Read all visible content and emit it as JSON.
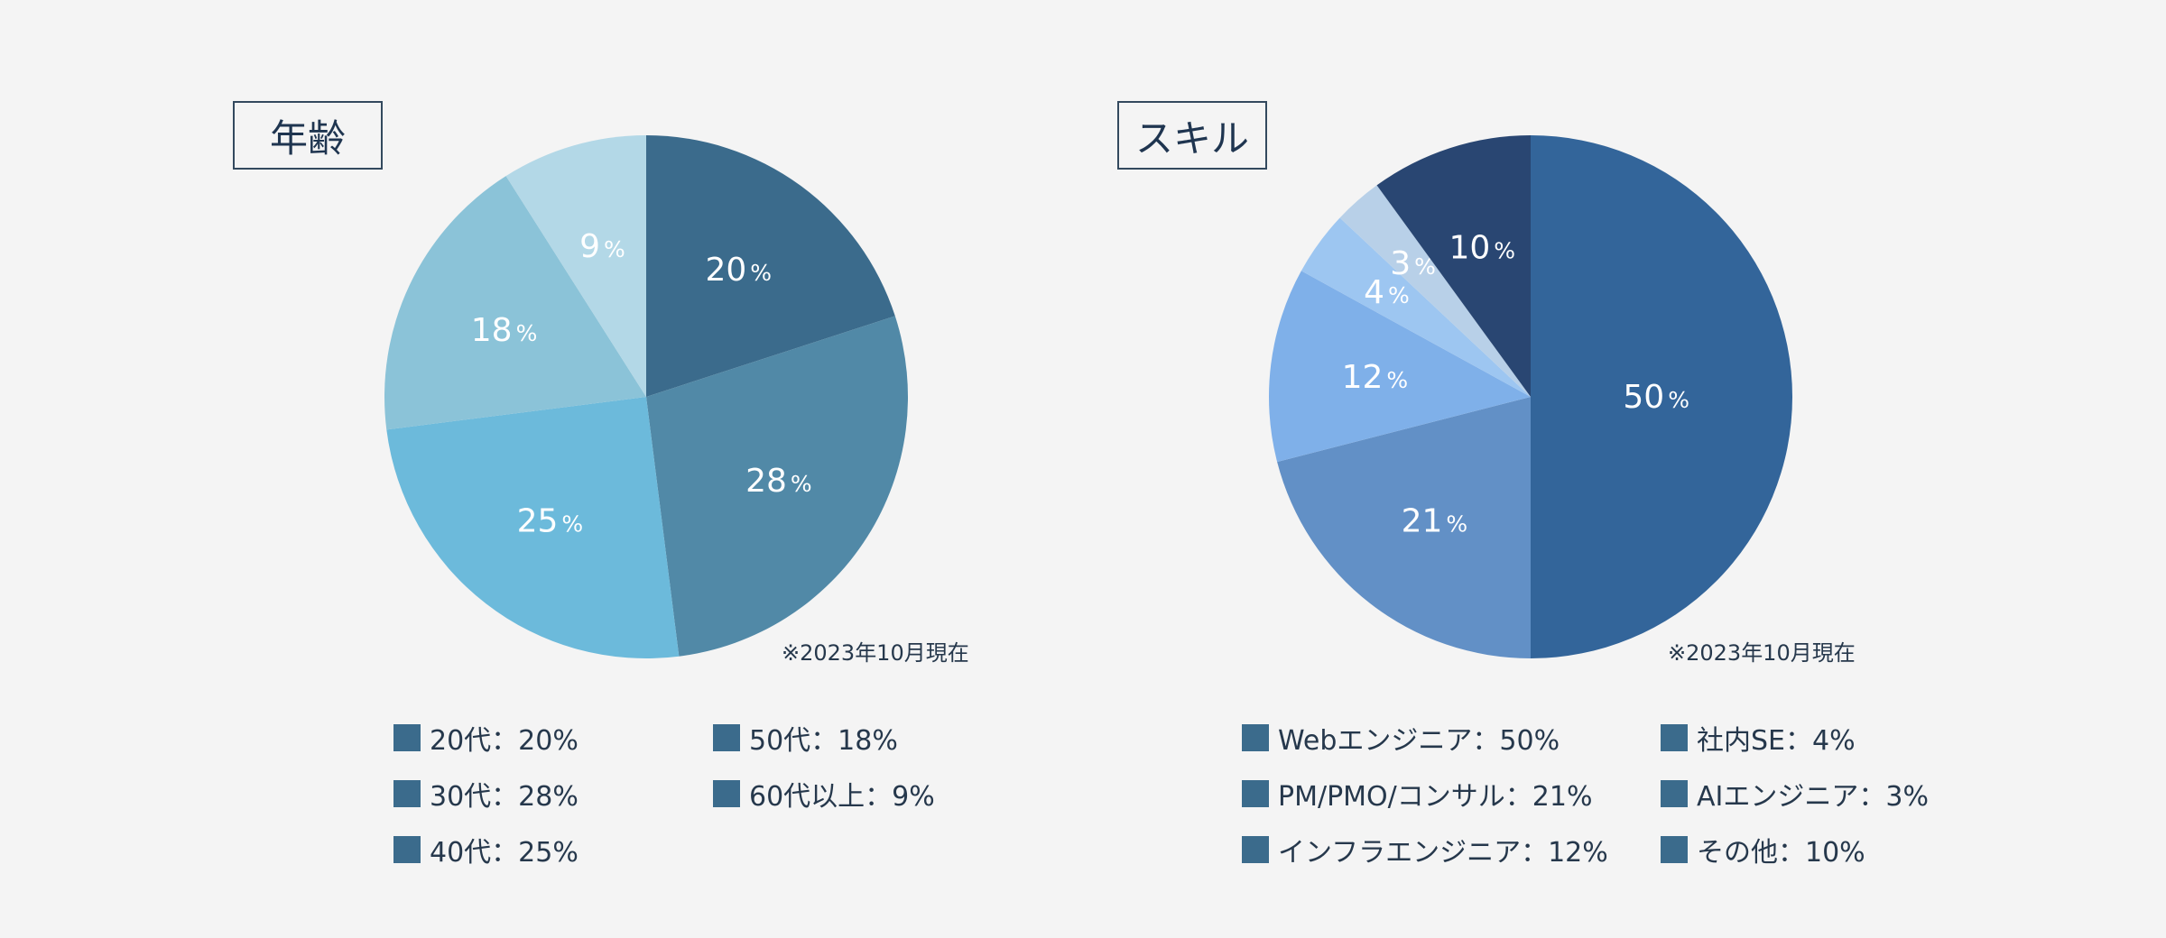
{
  "chart_data": [
    {
      "type": "pie",
      "title": "年齢",
      "note": "※2023年10月現在",
      "slices": [
        {
          "label": "20代",
          "value": 20,
          "color": "#3b6b8c",
          "legend": "20代：20%"
        },
        {
          "label": "30代",
          "value": 28,
          "color": "#5189a7",
          "legend": "30代：28%"
        },
        {
          "label": "40代",
          "value": 25,
          "color": "#6cbadb",
          "legend": "40代：25%"
        },
        {
          "label": "50代",
          "value": 18,
          "color": "#8bc3d8",
          "legend": "50代：18%"
        },
        {
          "label": "60代以上",
          "value": 9,
          "color": "#b3d8e7",
          "legend": "60代以上：9%"
        }
      ],
      "data_labels": [
        "20",
        "28",
        "25",
        "18",
        "9"
      ],
      "legend_marker_color": "#3b6b8c"
    },
    {
      "type": "pie",
      "title": "スキル",
      "note": "※2023年10月現在",
      "slices": [
        {
          "label": "Webエンジニア",
          "value": 50,
          "color": "#33659a",
          "legend": "Webエンジニア：50%"
        },
        {
          "label": "PM/PMO/コンサル",
          "value": 21,
          "color": "#6290c6",
          "legend": "PM/PMO/コンサル：21%"
        },
        {
          "label": "インフラエンジニア",
          "value": 12,
          "color": "#7fb0e9",
          "legend": "インフラエンジニア：12%"
        },
        {
          "label": "社内SE",
          "value": 4,
          "color": "#9dc6f1",
          "legend": "社内SE：4%"
        },
        {
          "label": "AIエンジニア",
          "value": 3,
          "color": "#b8d0e8",
          "legend": "AIエンジニア：3%"
        },
        {
          "label": "その他",
          "value": 10,
          "color": "#294672",
          "legend": "その他：10%"
        }
      ],
      "data_labels": [
        "50",
        "21",
        "12",
        "4",
        "3",
        "10"
      ],
      "legend_marker_color": "#3b6b8c"
    }
  ],
  "percent_sign": "%"
}
